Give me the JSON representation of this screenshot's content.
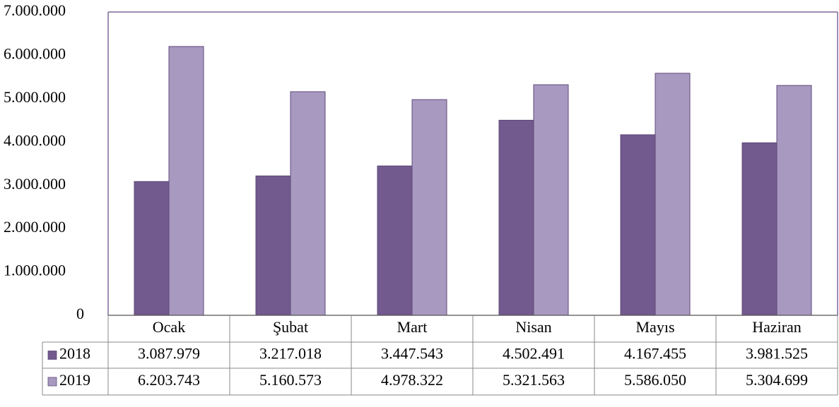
{
  "chart_data": {
    "type": "bar",
    "categories": [
      "Ocak",
      "Şubat",
      "Mart",
      "Nisan",
      "Mayıs",
      "Haziran"
    ],
    "series": [
      {
        "name": "2018",
        "color": "#72598e",
        "values": [
          3087979,
          3217018,
          3447543,
          4502491,
          4167455,
          3981525
        ],
        "value_labels": [
          "3.087.979",
          "3.217.018",
          "3.447.543",
          "4.502.491",
          "4.167.455",
          "3.981.525"
        ]
      },
      {
        "name": "2019",
        "color": "#a899c0",
        "values": [
          6203743,
          5160573,
          4978322,
          5321563,
          5586050,
          5304699
        ],
        "value_labels": [
          "6.203.743",
          "5.160.573",
          "4.978.322",
          "5.321.563",
          "5.586.050",
          "5.304.699"
        ]
      }
    ],
    "ylim": [
      0,
      7000000
    ],
    "yticks": [
      0,
      {
        "value": 1000000,
        "label": "1.000.000"
      },
      {
        "value": 2000000,
        "label": "2.000.000"
      },
      {
        "value": 3000000,
        "label": "3.000.000"
      },
      {
        "value": 4000000,
        "label": "4.000.000"
      },
      {
        "value": 5000000,
        "label": "5.000.000"
      },
      {
        "value": 6000000,
        "label": "6.000.000"
      },
      {
        "value": 7000000,
        "label": "7.000.000"
      }
    ],
    "grid": false
  }
}
